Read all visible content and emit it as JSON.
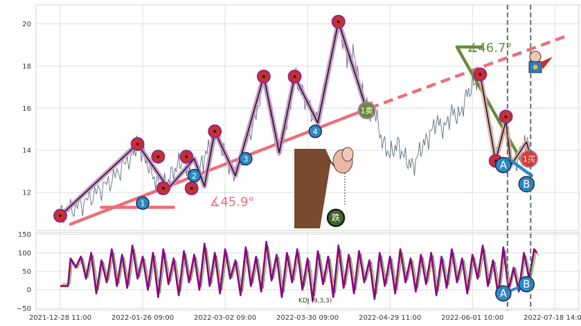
{
  "chart_data": [
    {
      "type": "line",
      "panel": "price",
      "grid": true,
      "ylim": [
        10.2,
        20.9
      ],
      "yticks": [
        "12",
        "14",
        "16",
        "18",
        "20"
      ],
      "x_dates": [
        "2021-12-28 11:00",
        "2022-01-26 09:00",
        "2022-03-02 09:00",
        "2022-03-30 09:00",
        "2022-04-29 11:00",
        "2022-06-01 10:00",
        "2022-07-18 14:00"
      ],
      "series": [
        {
          "values": [
            [
              0,
              11.0
            ],
            [
              4,
              11.2
            ],
            [
              8,
              11.4
            ],
            [
              12,
              11.8
            ],
            [
              16,
              12.2
            ],
            [
              20,
              12.6
            ],
            [
              24,
              13.2
            ],
            [
              28,
              13.8
            ],
            [
              30,
              14.3
            ],
            [
              33,
              13.6
            ],
            [
              36,
              12.8
            ],
            [
              39,
              12.1
            ],
            [
              42,
              12.6
            ],
            [
              45,
              13.2
            ],
            [
              48,
              13.6
            ],
            [
              50,
              12.9
            ],
            [
              52,
              12.3
            ],
            [
              55,
              13.4
            ],
            [
              58,
              14.2
            ],
            [
              60,
              14.9
            ],
            [
              63,
              14.1
            ],
            [
              66,
              13.3
            ],
            [
              68,
              12.8
            ],
            [
              72,
              14.3
            ],
            [
              76,
              15.6
            ],
            [
              79,
              17.5
            ],
            [
              81,
              16.2
            ],
            [
              83,
              14.9
            ],
            [
              85,
              13.9
            ],
            [
              88,
              15.3
            ],
            [
              91,
              17.5
            ],
            [
              94,
              16.7
            ],
            [
              97,
              15.9
            ],
            [
              100,
              15.3
            ],
            [
              103,
              17.2
            ],
            [
              106,
              18.9
            ],
            [
              108,
              20.1
            ],
            [
              110,
              19.0
            ],
            [
              112,
              18.2
            ],
            [
              114,
              18.6
            ],
            [
              116,
              17.2
            ],
            [
              118,
              16.4
            ],
            [
              120,
              15.7
            ],
            [
              122,
              15.9
            ],
            [
              125,
              14.4
            ],
            [
              128,
              13.8
            ],
            [
              131,
              14.3
            ],
            [
              134,
              13.6
            ],
            [
              137,
              13.2
            ],
            [
              140,
              14.1
            ],
            [
              143,
              14.6
            ],
            [
              146,
              15.4
            ],
            [
              149,
              15.0
            ],
            [
              152,
              15.8
            ],
            [
              155,
              15.6
            ],
            [
              158,
              16.7
            ],
            [
              161,
              17.2
            ],
            [
              163,
              17.6
            ],
            [
              165,
              16.4
            ],
            [
              167,
              15.1
            ],
            [
              169,
              13.5
            ],
            [
              171,
              14.4
            ],
            [
              173,
              15.4
            ],
            [
              175,
              13.8
            ],
            [
              177,
              13.3
            ],
            [
              179,
              14.1
            ],
            [
              181,
              14.4
            ],
            [
              183,
              13.8
            ]
          ]
        }
      ],
      "annotations": [
        {
          "text": "∡45.9°",
          "x": 60,
          "y": 11.3
        },
        {
          "text": "∡46.7°",
          "x": 160,
          "y": 18.6
        },
        {
          "text": "1卖",
          "x": 119,
          "y": 15.9
        },
        {
          "text": "1买",
          "x": 182,
          "y": 13.6
        },
        {
          "text": "跌",
          "x": 107,
          "y": 10.8
        },
        {
          "text": "A",
          "x": 172,
          "y": 13.3
        },
        {
          "text": "B",
          "x": 181,
          "y": 12.4
        }
      ],
      "markers": [
        {
          "text": "1",
          "x": 32,
          "y": 11.5
        },
        {
          "text": "2",
          "x": 52,
          "y": 12.8
        },
        {
          "text": "3",
          "x": 72,
          "y": 13.6
        },
        {
          "text": "4",
          "x": 99,
          "y": 14.9
        }
      ]
    },
    {
      "type": "line",
      "panel": "indicator",
      "title": "KDJ (9,3,3)",
      "grid": true,
      "ylim": [
        -55,
        155
      ],
      "yticks": [
        "150",
        "100",
        "50",
        "0",
        "−50"
      ],
      "x_dates": [
        "2021-12-28 11:00",
        "2022-01-26 09:00",
        "2022-03-02 09:00",
        "2022-03-30 09:00",
        "2022-04-29 11:00",
        "2022-06-01 10:00",
        "2022-07-18 14:00"
      ],
      "series": [
        {
          "values": [
            [
              0,
              10
            ],
            [
              3,
              10
            ],
            [
              4,
              85
            ],
            [
              6,
              60
            ],
            [
              8,
              90
            ],
            [
              10,
              30
            ],
            [
              12,
              100
            ],
            [
              14,
              -10
            ],
            [
              16,
              80
            ],
            [
              18,
              20
            ],
            [
              20,
              110
            ],
            [
              22,
              10
            ],
            [
              24,
              95
            ],
            [
              26,
              5
            ],
            [
              28,
              120
            ],
            [
              30,
              30
            ],
            [
              32,
              90
            ],
            [
              34,
              0
            ],
            [
              36,
              100
            ],
            [
              38,
              -20
            ],
            [
              40,
              110
            ],
            [
              42,
              15
            ],
            [
              44,
              85
            ],
            [
              46,
              -15
            ],
            [
              48,
              105
            ],
            [
              50,
              20
            ],
            [
              52,
              95
            ],
            [
              54,
              0
            ],
            [
              56,
              125
            ],
            [
              58,
              10
            ],
            [
              60,
              100
            ],
            [
              62,
              -10
            ],
            [
              64,
              110
            ],
            [
              66,
              30
            ],
            [
              68,
              80
            ],
            [
              70,
              -15
            ],
            [
              72,
              115
            ],
            [
              74,
              10
            ],
            [
              76,
              90
            ],
            [
              78,
              -5
            ],
            [
              80,
              130
            ],
            [
              82,
              25
            ],
            [
              84,
              95
            ],
            [
              86,
              -20
            ],
            [
              88,
              100
            ],
            [
              90,
              20
            ],
            [
              92,
              110
            ],
            [
              94,
              0
            ],
            [
              96,
              85
            ],
            [
              98,
              -30
            ],
            [
              100,
              105
            ],
            [
              102,
              15
            ],
            [
              104,
              90
            ],
            [
              106,
              -20
            ],
            [
              108,
              120
            ],
            [
              110,
              5
            ],
            [
              112,
              95
            ],
            [
              114,
              -10
            ],
            [
              116,
              105
            ],
            [
              118,
              20
            ],
            [
              120,
              80
            ],
            [
              122,
              -25
            ],
            [
              124,
              100
            ],
            [
              126,
              10
            ],
            [
              128,
              90
            ],
            [
              130,
              -10
            ],
            [
              132,
              110
            ],
            [
              134,
              20
            ],
            [
              136,
              85
            ],
            [
              138,
              -5
            ],
            [
              140,
              95
            ],
            [
              142,
              15
            ],
            [
              144,
              100
            ],
            [
              146,
              -15
            ],
            [
              148,
              90
            ],
            [
              150,
              5
            ],
            [
              152,
              110
            ],
            [
              154,
              20
            ],
            [
              156,
              85
            ],
            [
              158,
              -10
            ],
            [
              160,
              95
            ],
            [
              162,
              30
            ],
            [
              164,
              120
            ],
            [
              166,
              10
            ],
            [
              168,
              80
            ],
            [
              170,
              -15
            ],
            [
              172,
              115
            ],
            [
              174,
              0
            ],
            [
              176,
              60
            ],
            [
              178,
              -5
            ],
            [
              180,
              100
            ],
            [
              182,
              30
            ],
            [
              184,
              110
            ],
            [
              185,
              100
            ]
          ]
        }
      ],
      "annotations": [
        {
          "text": "A",
          "x": 172,
          "y": -10
        },
        {
          "text": "B",
          "x": 181,
          "y": 15
        }
      ]
    }
  ],
  "colors": {
    "price": "#5a6e80",
    "zigzag": "#1a1a1a",
    "zigzag_glow": "#c890c8",
    "trendline": "#ec6f78",
    "trendline_green": "#6a8a3a",
    "kdj": "#8b008b",
    "kdj_k": "#e0a020",
    "kdj_d": "#3aa060",
    "blue_marker": "#2a8ac8",
    "red_marker": "#c83030",
    "brown_cliff": "#7a4a2e",
    "grid": "#dcdcdc",
    "dashed_vline": "#5a6e70"
  },
  "icons": {
    "cliff": "cliff-icon",
    "dog": "falling-dog-icon",
    "superman": "superhero-icon"
  }
}
